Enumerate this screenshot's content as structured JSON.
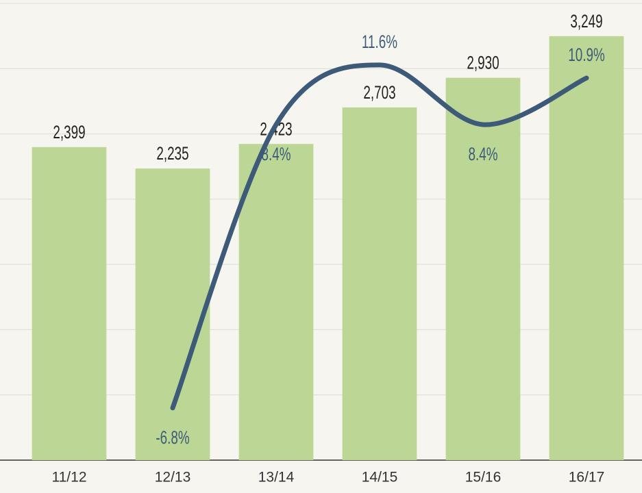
{
  "chart_data": {
    "type": "bar",
    "categories": [
      "11/12",
      "12/13",
      "13/14",
      "14/15",
      "15/16",
      "16/17"
    ],
    "series": [
      {
        "type": "bar",
        "color": "#bcd795",
        "values": [
          2399,
          2235,
          2423,
          2703,
          2930,
          3249
        ],
        "value_labels": [
          "2,399",
          "2,235",
          "2,423",
          "2,703",
          "2,930",
          "3,249"
        ]
      },
      {
        "type": "line",
        "axis": "y2",
        "color": "#3d5a78",
        "values": [
          null,
          -6.8,
          8.4,
          11.6,
          8.4,
          10.9
        ],
        "value_labels": [
          null,
          "-6.8%",
          "8.4%",
          "11.6%",
          "8.4%",
          "10.9%"
        ]
      }
    ],
    "ylim": [
      0,
      3500
    ],
    "yticks": [
      0,
      500,
      1000,
      1500,
      2000,
      2500,
      3000,
      3500
    ],
    "y2lim": [
      -9.6,
      14.9
    ],
    "grid": true
  }
}
